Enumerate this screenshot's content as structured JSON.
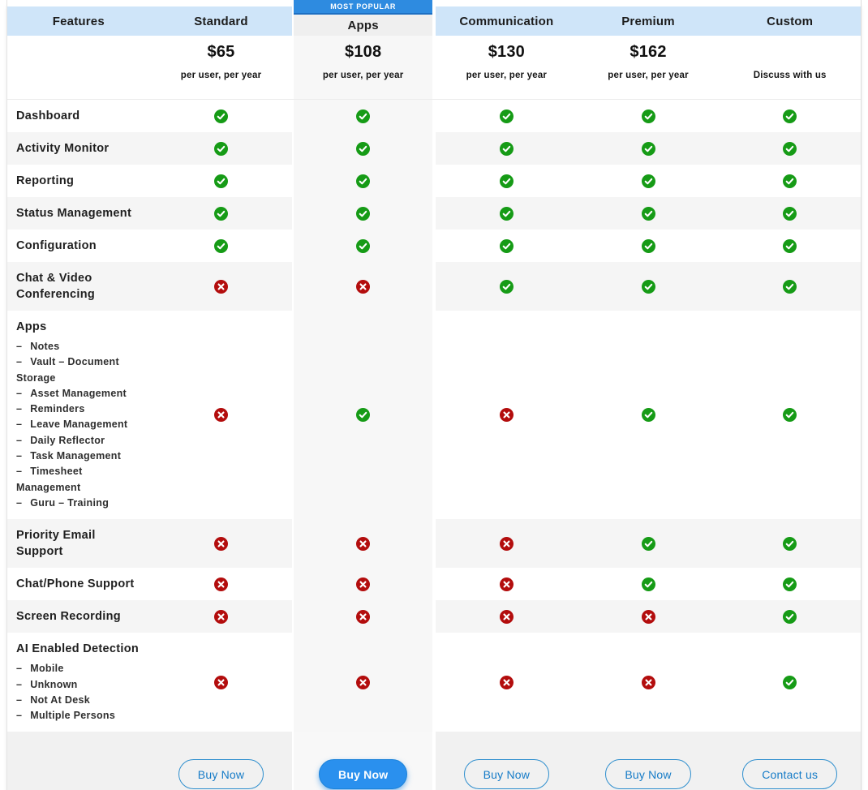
{
  "table": {
    "columns": [
      {
        "key": "features",
        "label": "Features"
      },
      {
        "key": "standard",
        "label": "Standard",
        "price": "$65",
        "per": "per user, per year",
        "button": "Buy Now"
      },
      {
        "key": "apps",
        "label": "Apps",
        "price": "$108",
        "per": "per user, per year",
        "button": "Buy Now",
        "badge": "MOST POPULAR",
        "highlight": true
      },
      {
        "key": "communication",
        "label": "Communication",
        "price": "$130",
        "per": "per user, per year",
        "button": "Buy Now"
      },
      {
        "key": "premium",
        "label": "Premium",
        "price": "$162",
        "per": "per user, per year",
        "button": "Buy Now"
      },
      {
        "key": "custom",
        "label": "Custom",
        "price": "",
        "per": "Discuss with us",
        "button": "Contact us"
      }
    ],
    "features": [
      {
        "name": "Dashboard",
        "values": {
          "standard": true,
          "apps": true,
          "communication": true,
          "premium": true,
          "custom": true
        }
      },
      {
        "name": "Activity Monitor",
        "values": {
          "standard": true,
          "apps": true,
          "communication": true,
          "premium": true,
          "custom": true
        }
      },
      {
        "name": "Reporting",
        "values": {
          "standard": true,
          "apps": true,
          "communication": true,
          "premium": true,
          "custom": true
        }
      },
      {
        "name": "Status Management",
        "values": {
          "standard": true,
          "apps": true,
          "communication": true,
          "premium": true,
          "custom": true
        }
      },
      {
        "name": "Configuration",
        "values": {
          "standard": true,
          "apps": true,
          "communication": true,
          "premium": true,
          "custom": true
        }
      },
      {
        "name": "Chat & Video Conferencing",
        "values": {
          "standard": false,
          "apps": false,
          "communication": true,
          "premium": true,
          "custom": true
        }
      },
      {
        "name": "Apps",
        "sub_items": [
          "Notes",
          "Vault – Document Storage",
          "Asset Management",
          "Reminders",
          "Leave Management",
          "Daily Reflector",
          "Task Management",
          "Timesheet Management",
          "Guru – Training"
        ],
        "values": {
          "standard": false,
          "apps": true,
          "communication": false,
          "premium": true,
          "custom": true
        }
      },
      {
        "name": "Priority Email Support",
        "values": {
          "standard": false,
          "apps": false,
          "communication": false,
          "premium": true,
          "custom": true
        }
      },
      {
        "name": "Chat/Phone Support",
        "values": {
          "standard": false,
          "apps": false,
          "communication": false,
          "premium": true,
          "custom": true
        }
      },
      {
        "name": "Screen Recording",
        "values": {
          "standard": false,
          "apps": false,
          "communication": false,
          "premium": false,
          "custom": true
        }
      },
      {
        "name": "AI Enabled Detection",
        "sub_items": [
          "Mobile",
          "Unknown",
          "Not At Desk",
          "Multiple Persons"
        ],
        "values": {
          "standard": false,
          "apps": false,
          "communication": false,
          "premium": false,
          "custom": true
        }
      }
    ],
    "icons": {
      "available": "check-icon",
      "unavailable": "cross-icon"
    },
    "colors": {
      "header_bg": "#cfe5f9",
      "ribbon_blue": "#2e8be0",
      "check_green": "#169b16",
      "cross_red": "#b30d0d",
      "stripe_gray": "#f5f5f5",
      "primary_button": "#2a90ee"
    }
  }
}
